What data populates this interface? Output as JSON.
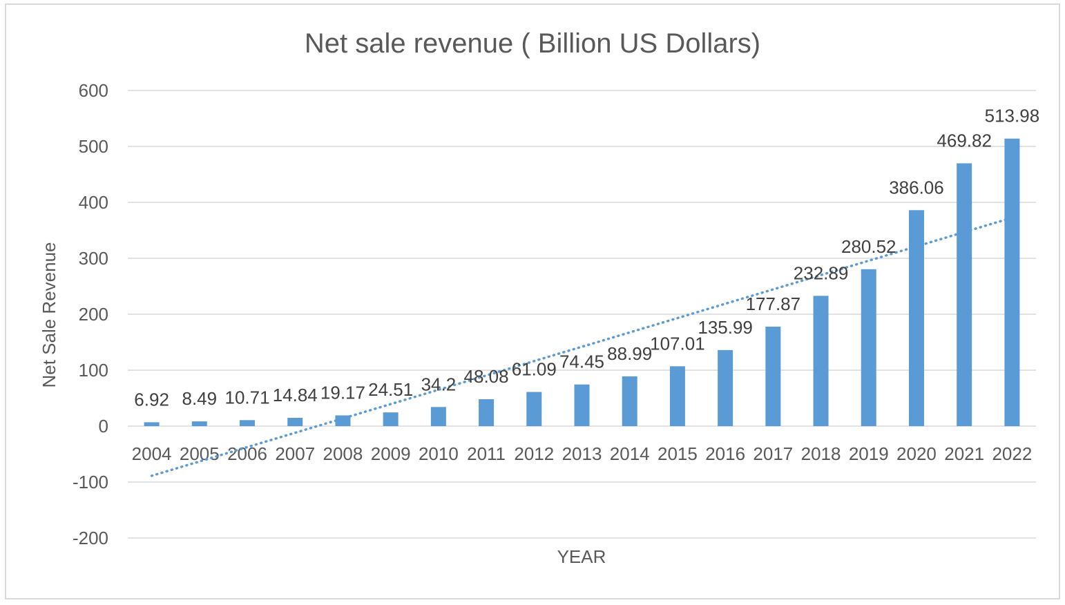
{
  "chart_data": {
    "type": "bar",
    "title": "Net sale revenue ( Billion US Dollars)",
    "xlabel": "YEAR",
    "ylabel": "Net Sale  Revenue",
    "categories": [
      "2004",
      "2005",
      "2006",
      "2007",
      "2008",
      "2009",
      "2010",
      "2011",
      "2012",
      "2013",
      "2014",
      "2015",
      "2016",
      "2017",
      "2018",
      "2019",
      "2020",
      "2021",
      "2022"
    ],
    "values": [
      6.92,
      8.49,
      10.71,
      14.84,
      19.17,
      24.51,
      34.2,
      48.08,
      61.09,
      74.45,
      88.99,
      107.01,
      135.99,
      177.87,
      232.89,
      280.52,
      386.06,
      469.82,
      513.98
    ],
    "value_labels": [
      "6.92",
      "8.49",
      "10.71",
      "14.84",
      "19.17",
      "24.51",
      "34.2",
      "48.08",
      "61.09",
      "74.45",
      "88.99",
      "107.01",
      "135.99",
      "177.87",
      "232.89",
      "280.52",
      "386.06",
      "469.82",
      "513.98"
    ],
    "ylim": [
      -200,
      600
    ],
    "yticks": [
      -200,
      -100,
      0,
      100,
      200,
      300,
      400,
      500,
      600
    ],
    "ytick_labels": [
      "-200",
      "-100",
      "0",
      "100",
      "200",
      "300",
      "400",
      "500",
      "600"
    ],
    "grid": true,
    "trendline": {
      "type": "linear",
      "style": "dotted"
    },
    "colors": {
      "bar": "#5b9bd5",
      "trendline": "#5b9bd5",
      "grid": "#d9d9d9",
      "text": "#595959"
    }
  }
}
